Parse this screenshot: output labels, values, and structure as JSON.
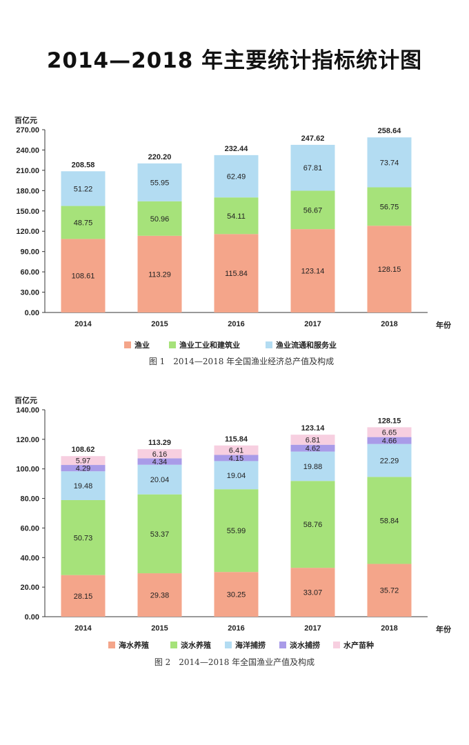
{
  "page_title": "2014—2018 年主要统计指标统计图",
  "chart_data": [
    {
      "type": "bar",
      "stacked": true,
      "title": "图 1　2014—2018 年全国渔业经济总产值及构成",
      "ylabel": "百亿元",
      "xlabel": "年份",
      "ylim": [
        0,
        270
      ],
      "yticks": [
        "0.00",
        "30.00",
        "60.00",
        "90.00",
        "120.00",
        "150.00",
        "180.00",
        "210.00",
        "240.00",
        "270.00"
      ],
      "categories": [
        "2014",
        "2015",
        "2016",
        "2017",
        "2018"
      ],
      "series": [
        {
          "name": "渔业",
          "color": "#f4a58a",
          "values": [
            108.61,
            113.29,
            115.84,
            123.14,
            128.15
          ],
          "labels": [
            "108.61",
            "113.29",
            "115.84",
            "123.14",
            "128.15"
          ]
        },
        {
          "name": "渔业工业和建筑业",
          "color": "#a6e27a",
          "values": [
            48.75,
            50.96,
            54.11,
            56.67,
            56.75
          ],
          "labels": [
            "48.75",
            "50.96",
            "54.11",
            "56.67",
            "56.75"
          ]
        },
        {
          "name": "渔业流通和服务业",
          "color": "#b3dcf2",
          "values": [
            51.22,
            55.95,
            62.49,
            67.81,
            73.74
          ],
          "labels": [
            "51.22",
            "55.95",
            "62.49",
            "67.81",
            "73.74"
          ]
        }
      ],
      "totals": [
        "208.58",
        "220.20",
        "232.44",
        "247.62",
        "258.64"
      ],
      "legend": "bottom"
    },
    {
      "type": "bar",
      "stacked": true,
      "title": "图 2　2014—2018 年全国渔业产值及构成",
      "ylabel": "百亿元",
      "xlabel": "年份",
      "ylim": [
        0,
        140
      ],
      "yticks": [
        "0.00",
        "20.00",
        "40.00",
        "60.00",
        "80.00",
        "100.00",
        "120.00",
        "140.00"
      ],
      "categories": [
        "2014",
        "2015",
        "2016",
        "2017",
        "2018"
      ],
      "series": [
        {
          "name": "海水养殖",
          "color": "#f4a58a",
          "values": [
            28.15,
            29.38,
            30.25,
            33.07,
            35.72
          ],
          "labels": [
            "28.15",
            "29.38",
            "30.25",
            "33.07",
            "35.72"
          ]
        },
        {
          "name": "淡水养殖",
          "color": "#a6e27a",
          "values": [
            50.73,
            53.37,
            55.99,
            58.76,
            58.84
          ],
          "labels": [
            "50.73",
            "53.37",
            "55.99",
            "58.76",
            "58.84"
          ]
        },
        {
          "name": "海洋捕捞",
          "color": "#b3dcf2",
          "values": [
            19.48,
            20.04,
            19.04,
            19.88,
            22.29
          ],
          "labels": [
            "19.48",
            "20.04",
            "19.04",
            "19.88",
            "22.29"
          ]
        },
        {
          "name": "淡水捕捞",
          "color": "#a99be8",
          "values": [
            4.29,
            4.34,
            4.15,
            4.62,
            4.66
          ],
          "labels": [
            "4.29",
            "4.34",
            "4.15",
            "4.62",
            "4.66"
          ]
        },
        {
          "name": "水产苗种",
          "color": "#f7cfe0",
          "values": [
            5.97,
            6.16,
            6.41,
            6.81,
            6.65
          ],
          "labels": [
            "5.97",
            "6.16",
            "6.41",
            "6.81",
            "6.65"
          ]
        }
      ],
      "totals": [
        "108.62",
        "113.29",
        "115.84",
        "123.14",
        "128.15"
      ],
      "legend": "bottom"
    }
  ]
}
